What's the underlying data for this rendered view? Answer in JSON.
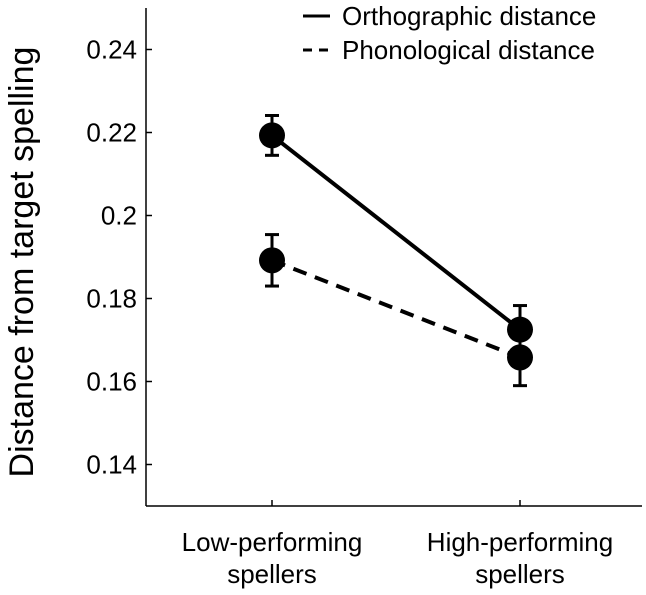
{
  "chart_data": {
    "type": "line",
    "title": "",
    "xlabel": "",
    "ylabel": "Distance from target spelling",
    "categories": [
      [
        "Low-performing",
        "spellers"
      ],
      [
        "High-performing",
        "spellers"
      ]
    ],
    "ylim": [
      0.13,
      0.25
    ],
    "yticks": [
      0.14,
      0.16,
      0.18,
      0.2,
      0.22,
      0.24
    ],
    "ytick_labels": [
      "0.14",
      "0.16",
      "0.18",
      "0.2",
      "0.22",
      "0.24"
    ],
    "series": [
      {
        "name": "Orthographic distance",
        "linestyle": "solid",
        "values": [
          0.2193,
          0.1725
        ],
        "error": [
          0.0048,
          0.0058
        ]
      },
      {
        "name": "Phonological distance",
        "linestyle": "dashed",
        "values": [
          0.1892,
          0.1658
        ],
        "error": [
          0.0062,
          0.0068
        ]
      }
    ],
    "legend_position": "top-right",
    "grid": false,
    "colors": {
      "line": "#000000",
      "axis": "#000000"
    }
  }
}
